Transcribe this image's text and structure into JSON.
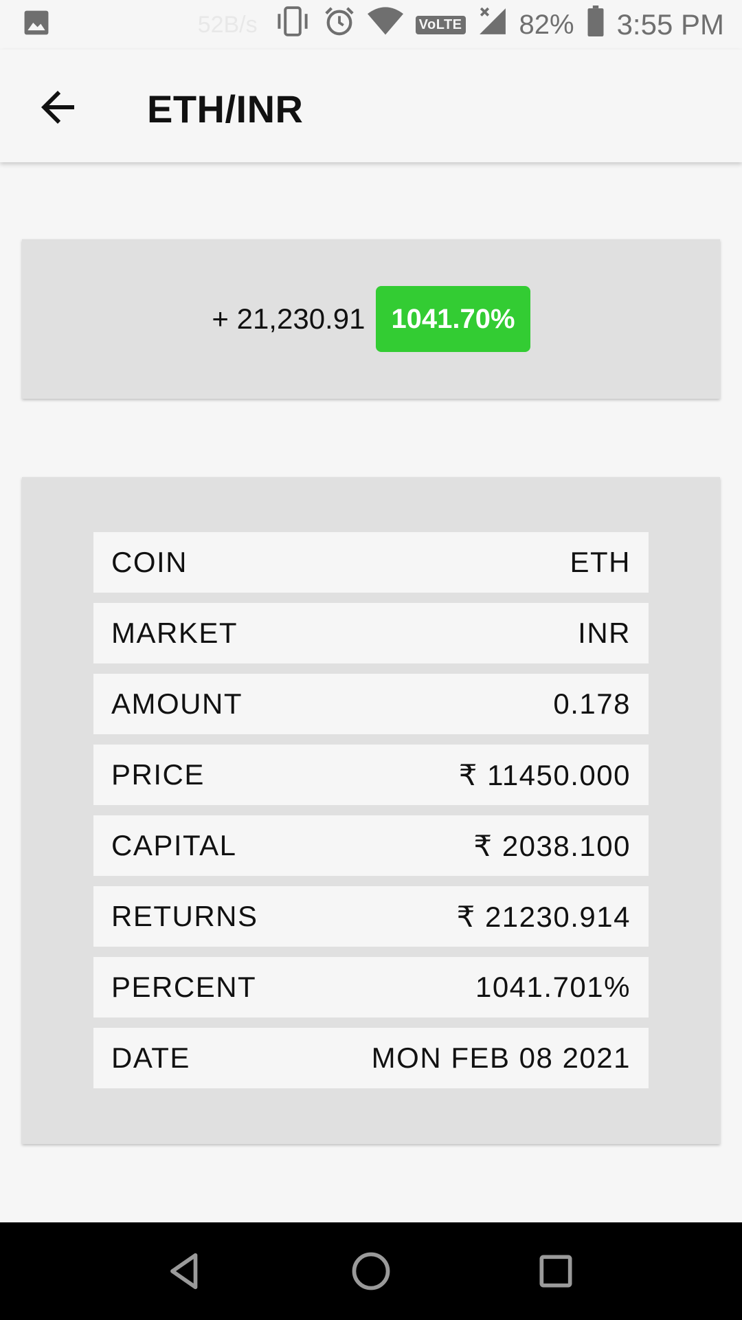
{
  "status_bar": {
    "net_speed": "52B/s",
    "volte": "VoLTE",
    "battery": "82%",
    "time": "3:55 PM",
    "icons": [
      "image-icon",
      "vibrate-icon",
      "alarm-icon",
      "wifi-icon",
      "signal-icon",
      "battery-icon"
    ]
  },
  "app_bar": {
    "title": "ETH/INR",
    "back_icon": "arrow-left-icon"
  },
  "summary": {
    "amount": "+ 21,230.91",
    "percent_badge": "1041.70%",
    "badge_color": "#33cc33"
  },
  "details": {
    "rows": [
      {
        "label": "COIN",
        "value": "ETH"
      },
      {
        "label": "MARKET",
        "value": "INR"
      },
      {
        "label": "AMOUNT",
        "value": "0.178"
      },
      {
        "label": "PRICE",
        "value": "₹ 11450.000"
      },
      {
        "label": "CAPITAL",
        "value": "₹ 2038.100"
      },
      {
        "label": "RETURNS",
        "value": "₹ 21230.914"
      },
      {
        "label": "PERCENT",
        "value": "1041.701%"
      },
      {
        "label": "DATE",
        "value": "MON FEB 08 2021"
      }
    ]
  },
  "nav_bar": {
    "icons": [
      "back-triangle-icon",
      "home-circle-icon",
      "recents-square-icon"
    ]
  }
}
